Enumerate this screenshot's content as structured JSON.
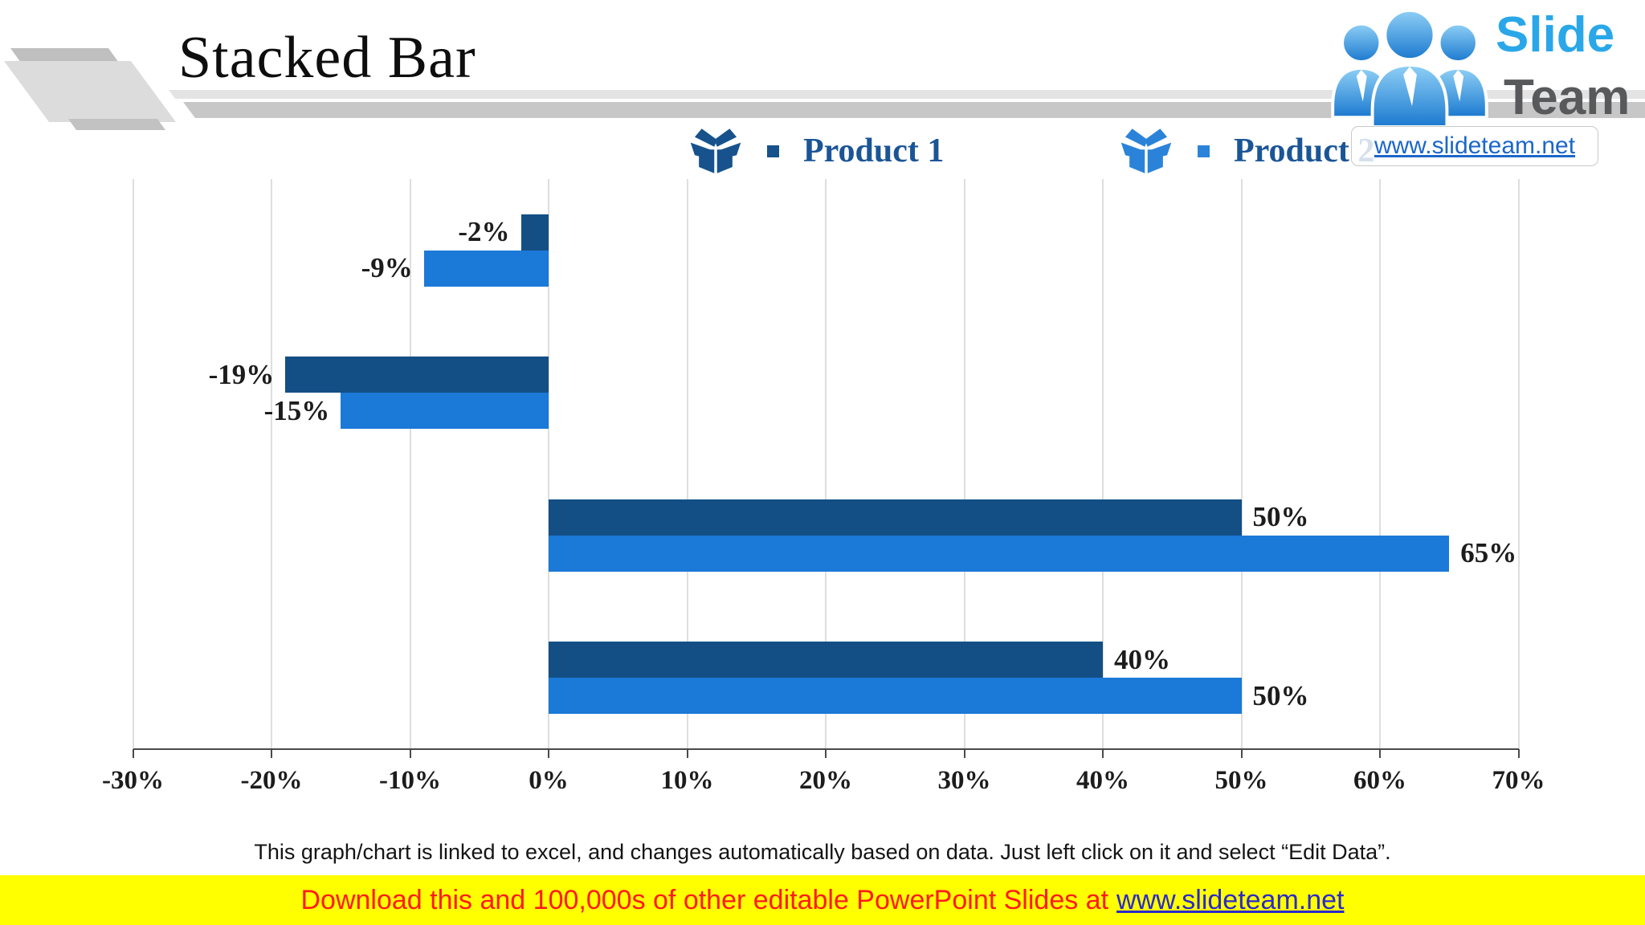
{
  "title": "Stacked Bar",
  "legend": {
    "items": [
      {
        "label": "Product 1",
        "color": "#17528C"
      },
      {
        "label": "Product 2",
        "color": "#2B83D9"
      }
    ]
  },
  "chart_data": {
    "type": "bar",
    "orientation": "horizontal",
    "categories": [
      "",
      "",
      "",
      ""
    ],
    "series": [
      {
        "name": "Product 1",
        "color": "#134F85",
        "values": [
          -2,
          -19,
          50,
          40
        ],
        "labels": [
          "-2%",
          "-19%",
          "50%",
          "40%"
        ]
      },
      {
        "name": "Product 2",
        "color": "#1B79D7",
        "values": [
          -9,
          -15,
          65,
          50
        ],
        "labels": [
          "-9%",
          "-15%",
          "65%",
          "50%"
        ]
      }
    ],
    "xlim": [
      -30,
      70
    ],
    "x_tick_labels": [
      "-30%",
      "-20%",
      "-10%",
      "0%",
      "10%",
      "20%",
      "30%",
      "40%",
      "50%",
      "60%",
      "70%"
    ],
    "grid": true,
    "legend_position": "top",
    "grid_color": "#dedede",
    "axis_color": "#4a4a4a"
  },
  "footer_note": "This graph/chart is linked to excel, and changes automatically based on data. Just left click on it and select “Edit Data”.",
  "banner": {
    "text": "Download this and 100,000s of other editable PowerPoint Slides at",
    "link_text": "www.slideteam.net",
    "background": "#FFFF00",
    "text_color": "#FF1B1B",
    "link_color": "#2A2ACC"
  },
  "logo": {
    "word1": "Slide",
    "word2": "Team",
    "url_text": "www.slideteam.net",
    "word1_color": "#2AA7E8",
    "word2_color": "#58595B"
  }
}
